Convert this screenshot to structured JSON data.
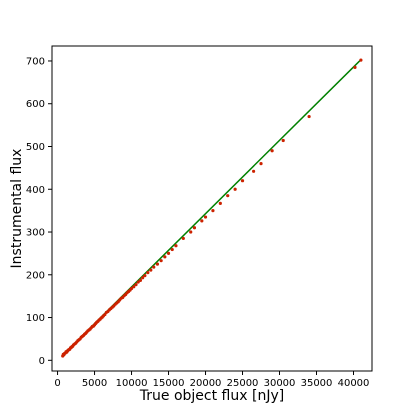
{
  "chart_data": {
    "type": "scatter",
    "title": "",
    "xlabel": "True object flux [nJy]",
    "ylabel": "Instrumental flux",
    "xlim": [
      -750,
      42500
    ],
    "ylim": [
      -25,
      735
    ],
    "xticks": [
      0,
      5000,
      10000,
      15000,
      20000,
      25000,
      30000,
      35000,
      40000
    ],
    "yticks": [
      0,
      100,
      200,
      300,
      400,
      500,
      600,
      700
    ],
    "grid": false,
    "colors": {
      "points": "#cc2200",
      "fit_line": "#008000",
      "axis": "#000000"
    },
    "fit_line": {
      "x": [
        700,
        41000
      ],
      "y": [
        12,
        703
      ]
    },
    "series": [
      {
        "x": [
          700,
          780,
          860,
          950,
          1050,
          1150,
          1250,
          1350,
          1450,
          1550,
          1650,
          1750,
          1850,
          1950,
          2050,
          2150,
          2300,
          2450,
          2600,
          2750,
          2900,
          3050,
          3200,
          3350,
          3500,
          3650,
          3800,
          3950,
          4100,
          4250,
          4400,
          4550,
          4700,
          4850,
          5000,
          5150,
          5300,
          5450,
          5600,
          5750,
          5900,
          6050,
          6200,
          6400,
          6600,
          6800,
          7000,
          7200,
          7400,
          7600,
          7800,
          8000,
          8200,
          8400,
          8600,
          8800,
          9000,
          9200,
          9400,
          9600,
          9800,
          10000,
          10300,
          10600,
          10900,
          11200,
          11500,
          11800,
          12200,
          12600,
          13000,
          13500,
          14000,
          14500,
          15000,
          15500,
          16000,
          17000,
          18000,
          18500,
          19500,
          20000,
          21000,
          22000,
          23000,
          24000,
          25000,
          26500,
          27500,
          29000,
          30500,
          34000,
          40200,
          41000
        ],
        "y": [
          10,
          14,
          13,
          16,
          17,
          20,
          19,
          22,
          24,
          25,
          26,
          29,
          30,
          32,
          33,
          36,
          38,
          40,
          43,
          46,
          48,
          50,
          54,
          56,
          58,
          61,
          63,
          66,
          69,
          71,
          73,
          76,
          79,
          80,
          83,
          86,
          89,
          91,
          94,
          96,
          99,
          101,
          104,
          107,
          112,
          114,
          118,
          121,
          124,
          127,
          131,
          134,
          137,
          141,
          145,
          147,
          151,
          154,
          158,
          161,
          164,
          168,
          172,
          177,
          183,
          187,
          193,
          198,
          205,
          211,
          218,
          225,
          233,
          242,
          250,
          259,
          268,
          285,
          300,
          310,
          326,
          335,
          350,
          367,
          385,
          400,
          420,
          442,
          460,
          490,
          514,
          570,
          685,
          702
        ]
      }
    ]
  }
}
